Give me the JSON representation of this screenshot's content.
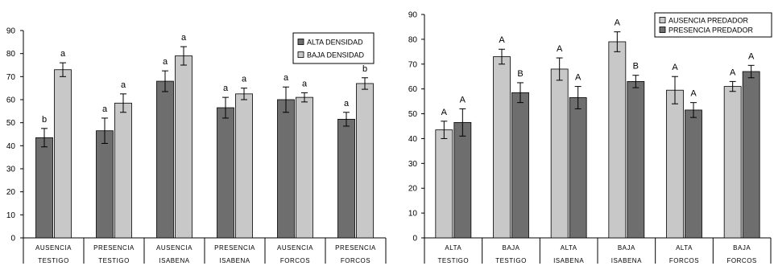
{
  "chart_data": [
    {
      "type": "bar",
      "ylim": [
        0,
        90
      ],
      "yticks": [
        0,
        10,
        20,
        30,
        40,
        50,
        60,
        70,
        80,
        90
      ],
      "categories": [
        [
          "AUSENCIA",
          "TESTIGO"
        ],
        [
          "PRESENCIA",
          "TESTIGO"
        ],
        [
          "AUSENCIA",
          "ISABENA"
        ],
        [
          "PRESENCIA",
          "ISABENA"
        ],
        [
          "AUSENCIA",
          "FORCOS"
        ],
        [
          "PRESENCIA",
          "FORCOS"
        ]
      ],
      "legend_position": "top-right",
      "series": [
        {
          "name": "ALTA DENSIDAD",
          "color": "#6e6e6e",
          "values": [
            43.5,
            46.5,
            68,
            56.5,
            60,
            51.5
          ],
          "errors": [
            4,
            5.5,
            4.5,
            4.5,
            5.5,
            3
          ],
          "labels": [
            "b",
            "a",
            "a",
            "a",
            "a",
            "a"
          ]
        },
        {
          "name": "BAJA DENSIDAD",
          "color": "#c8c8c8",
          "values": [
            73,
            58.5,
            79,
            62.5,
            61,
            67
          ],
          "errors": [
            3,
            4,
            4,
            2.5,
            2,
            2.5
          ],
          "labels": [
            "a",
            "a",
            "a",
            "a",
            "a",
            "b"
          ]
        }
      ]
    },
    {
      "type": "bar",
      "ylim": [
        0,
        90
      ],
      "yticks": [
        0,
        10,
        20,
        30,
        40,
        50,
        60,
        70,
        80,
        90
      ],
      "categories": [
        [
          "ALTA",
          "TESTIGO"
        ],
        [
          "BAJA",
          "TESTIGO"
        ],
        [
          "ALTA",
          "ISABENA"
        ],
        [
          "BAJA",
          "ISABENA"
        ],
        [
          "ALTA",
          "FORCOS"
        ],
        [
          "BAJA",
          "FORCOS"
        ]
      ],
      "legend_position": "top-right",
      "series": [
        {
          "name": "AUSENCIA  PREDADOR",
          "color": "#c8c8c8",
          "values": [
            43.5,
            73,
            68,
            79,
            59.5,
            61
          ],
          "errors": [
            3.5,
            3,
            4.5,
            4,
            5.5,
            2
          ],
          "labels": [
            "A",
            "A",
            "A",
            "A",
            "A",
            "A"
          ]
        },
        {
          "name": "PRESENCIA  PREDADOR",
          "color": "#6e6e6e",
          "values": [
            46.5,
            58.5,
            56.5,
            63,
            51.5,
            67
          ],
          "errors": [
            5.5,
            4,
            4.5,
            2.5,
            3,
            2.5
          ],
          "labels": [
            "A",
            "B",
            "A",
            "B",
            "A",
            "A"
          ]
        }
      ]
    }
  ]
}
